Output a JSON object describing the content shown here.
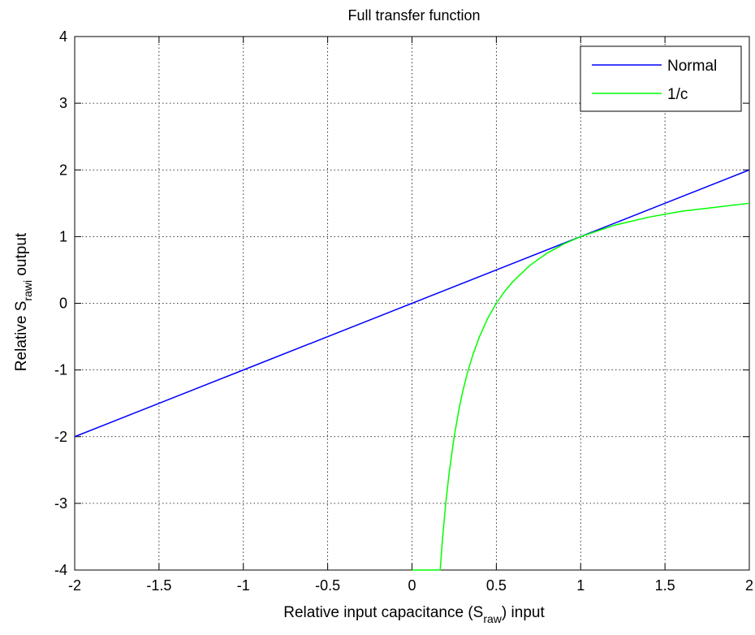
{
  "chart_data": {
    "type": "line",
    "title": "Full transfer function",
    "xlabel": {
      "prefix": "Relative input capacitance (S",
      "sub": "raw",
      "suffix": ") input"
    },
    "ylabel": {
      "prefix": "Relative S",
      "sub": "rawi",
      "suffix": " output"
    },
    "xlim": [
      -2,
      2
    ],
    "ylim": [
      -4,
      4
    ],
    "xticks": [
      -2,
      -1.5,
      -1,
      -0.5,
      0,
      0.5,
      1,
      1.5,
      2
    ],
    "yticks": [
      -4,
      -3,
      -2,
      -1,
      0,
      1,
      2,
      3,
      4
    ],
    "xtick_labels": [
      "-2",
      "-1.5",
      "-1",
      "-0.5",
      "0",
      "0.5",
      "1",
      "1.5",
      "2"
    ],
    "ytick_labels": [
      "-4",
      "-3",
      "-2",
      "-1",
      "0",
      "1",
      "2",
      "3",
      "4"
    ],
    "grid": true,
    "legend_position": "top-right",
    "series": [
      {
        "name": "Normal",
        "color": "#0000ff",
        "x": [
          -2,
          -1,
          0,
          1,
          2
        ],
        "y": [
          -2,
          -1,
          0,
          1,
          2
        ]
      },
      {
        "name": "1/c",
        "color": "#00ff00",
        "x": [
          0,
          0.16,
          0.167,
          0.18,
          0.2,
          0.22,
          0.25,
          0.28,
          0.3,
          0.33,
          0.36,
          0.4,
          0.45,
          0.5,
          0.55,
          0.6,
          0.7,
          0.8,
          0.9,
          1,
          1.2,
          1.4,
          1.6,
          1.8,
          2
        ],
        "y": [
          -4,
          -4,
          -4,
          -3.56,
          -3,
          -2.55,
          -2,
          -1.57,
          -1.33,
          -1.03,
          -0.78,
          -0.5,
          -0.22,
          0,
          0.18,
          0.33,
          0.57,
          0.75,
          0.89,
          1,
          1.17,
          1.29,
          1.38,
          1.44,
          1.5
        ]
      }
    ]
  }
}
